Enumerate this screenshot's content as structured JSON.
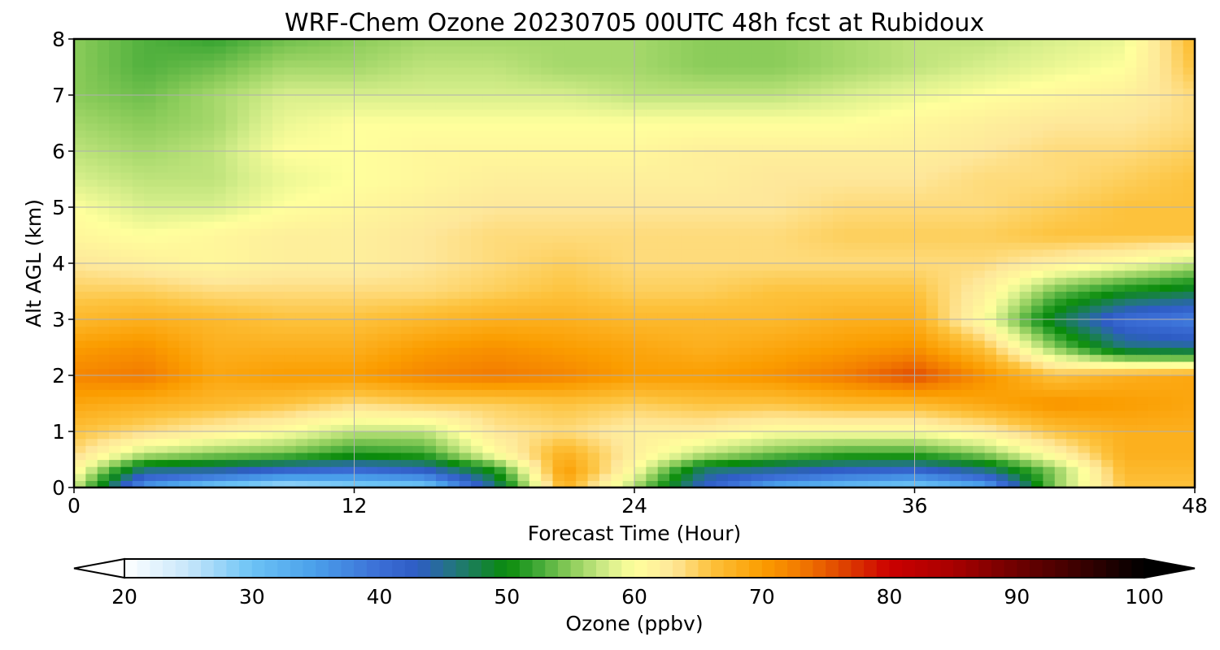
{
  "chart_data": {
    "type": "heatmap",
    "title": "WRF-Chem Ozone  20230705 00UTC 48h fcst at Rubidoux",
    "xlabel": "Forecast Time (Hour)",
    "ylabel": "Alt AGL (km)",
    "xlim": [
      0,
      48
    ],
    "ylim": [
      0,
      8
    ],
    "x_ticks": [
      0,
      12,
      24,
      36,
      48
    ],
    "y_ticks": [
      0,
      1,
      2,
      3,
      4,
      5,
      6,
      7,
      8
    ],
    "grid": true,
    "colorbar": {
      "label": "Ozone  (ppbv)",
      "range": [
        20,
        100
      ],
      "ticks": [
        20,
        30,
        40,
        50,
        60,
        70,
        80,
        90,
        100
      ],
      "extend": "both",
      "orientation": "horizontal",
      "stops": [
        {
          "v": 20,
          "c": "#ffffff"
        },
        {
          "v": 25,
          "c": "#c7e6fb"
        },
        {
          "v": 30,
          "c": "#6cc3f5"
        },
        {
          "v": 35,
          "c": "#4a9fea"
        },
        {
          "v": 40,
          "c": "#3b6ed6"
        },
        {
          "v": 43,
          "c": "#2e5cc4"
        },
        {
          "v": 46,
          "c": "#22787a"
        },
        {
          "v": 50,
          "c": "#0a8b0a"
        },
        {
          "v": 52,
          "c": "#35a330"
        },
        {
          "v": 55,
          "c": "#8bcc5a"
        },
        {
          "v": 58,
          "c": "#d8ef8c"
        },
        {
          "v": 60,
          "c": "#ffff9c"
        },
        {
          "v": 63,
          "c": "#fee79a"
        },
        {
          "v": 66,
          "c": "#fdc23c"
        },
        {
          "v": 70,
          "c": "#fb9d00"
        },
        {
          "v": 73,
          "c": "#f27a00"
        },
        {
          "v": 76,
          "c": "#e14a00"
        },
        {
          "v": 80,
          "c": "#cc0000"
        },
        {
          "v": 85,
          "c": "#a80000"
        },
        {
          "v": 90,
          "c": "#6e0000"
        },
        {
          "v": 95,
          "c": "#3a0000"
        },
        {
          "v": 100,
          "c": "#000000"
        }
      ]
    },
    "x": [
      0,
      3,
      6,
      9,
      12,
      15,
      18,
      21,
      24,
      27,
      30,
      33,
      36,
      39,
      42,
      45,
      48
    ],
    "y": [
      0,
      0.3,
      0.6,
      1,
      1.5,
      2,
      2.5,
      3,
      3.5,
      4,
      4.5,
      5,
      5.5,
      6,
      6.5,
      7,
      7.5,
      8
    ],
    "z": [
      [
        58,
        35,
        28,
        25,
        27,
        28,
        45,
        68,
        56,
        42,
        33,
        30,
        28,
        33,
        55,
        66,
        66
      ],
      [
        61,
        45,
        44,
        41,
        40,
        42,
        50,
        70,
        60,
        46,
        44,
        42,
        41,
        45,
        55,
        67,
        67
      ],
      [
        64,
        57,
        55,
        54,
        51,
        52,
        60,
        68,
        62,
        57,
        54,
        52,
        52,
        55,
        61,
        68,
        68
      ],
      [
        66,
        64,
        62,
        60,
        57,
        57,
        63,
        64,
        62,
        62,
        60,
        60,
        60,
        62,
        66,
        68,
        68
      ],
      [
        69,
        68,
        67,
        66,
        64,
        65,
        65,
        66,
        65,
        66,
        66,
        67,
        67,
        69,
        71,
        70,
        69
      ],
      [
        72,
        73,
        69,
        70,
        70,
        72,
        73,
        72,
        70,
        70,
        71,
        73,
        76,
        71,
        66,
        68,
        69
      ],
      [
        70,
        71,
        68,
        68,
        68,
        70,
        71,
        70,
        69,
        68,
        69,
        70,
        71,
        66,
        55,
        46,
        45
      ],
      [
        67,
        68,
        67,
        66,
        66,
        67,
        68,
        68,
        67,
        67,
        67,
        68,
        68,
        60,
        48,
        40,
        38
      ],
      [
        65,
        65,
        64,
        64,
        64,
        64,
        65,
        66,
        65,
        65,
        66,
        66,
        66,
        62,
        54,
        50,
        48
      ],
      [
        63,
        62,
        61,
        62,
        62,
        63,
        64,
        65,
        64,
        64,
        64,
        64,
        64,
        64,
        62,
        60,
        57
      ],
      [
        61,
        60,
        61,
        62,
        62,
        63,
        64,
        64,
        64,
        64,
        64,
        65,
        65,
        65,
        66,
        66,
        66
      ],
      [
        60,
        58,
        58,
        60,
        61,
        62,
        63,
        63,
        63,
        63,
        63,
        64,
        64,
        64,
        65,
        66,
        66
      ],
      [
        58,
        57,
        57,
        59,
        60,
        61,
        62,
        62,
        62,
        62,
        63,
        63,
        63,
        64,
        64,
        65,
        66
      ],
      [
        57,
        56,
        57,
        60,
        60,
        61,
        61,
        61,
        61,
        62,
        62,
        62,
        62,
        63,
        64,
        64,
        65
      ],
      [
        56,
        55,
        56,
        59,
        60,
        60,
        60,
        60,
        60,
        60,
        60,
        60,
        61,
        62,
        63,
        63,
        64
      ],
      [
        55,
        54,
        56,
        58,
        58,
        58,
        58,
        58,
        57,
        57,
        57,
        58,
        59,
        60,
        61,
        62,
        64
      ],
      [
        55,
        53,
        54,
        56,
        56,
        57,
        57,
        56,
        56,
        55,
        55,
        56,
        57,
        58,
        59,
        60,
        66
      ],
      [
        55,
        53,
        52,
        54,
        55,
        56,
        56,
        56,
        56,
        55,
        55,
        56,
        57,
        57,
        58,
        59,
        67
      ]
    ]
  }
}
